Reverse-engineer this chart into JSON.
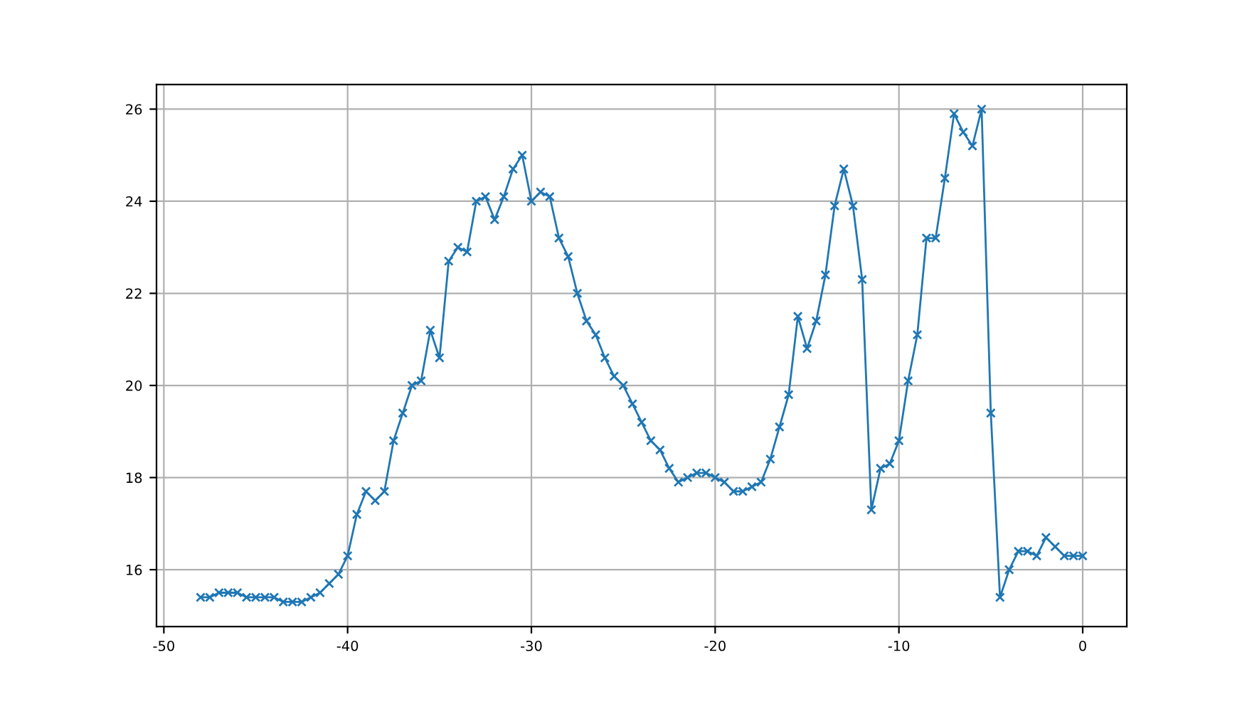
{
  "chart_data": {
    "type": "line",
    "x": [
      -48,
      -47.5,
      -47,
      -46.5,
      -46,
      -45.5,
      -45,
      -44.5,
      -44,
      -43.5,
      -43,
      -42.5,
      -42,
      -41.5,
      -41,
      -40.5,
      -40,
      -39.5,
      -39,
      -38.5,
      -38,
      -37.5,
      -37,
      -36.5,
      -36,
      -35.5,
      -35,
      -34.5,
      -34,
      -33.5,
      -33,
      -32.5,
      -32,
      -31.5,
      -31,
      -30.5,
      -30,
      -29.5,
      -29,
      -28.5,
      -28,
      -27.5,
      -27,
      -26.5,
      -26,
      -25.5,
      -25,
      -24.5,
      -24,
      -23.5,
      -23,
      -22.5,
      -22,
      -21.5,
      -21,
      -20.5,
      -20,
      -19.5,
      -19,
      -18.5,
      -18,
      -17.5,
      -17,
      -16.5,
      -16,
      -15.5,
      -15,
      -14.5,
      -14,
      -13.5,
      -13,
      -12.5,
      -12,
      -11.5,
      -11,
      -10.5,
      -10,
      -9.5,
      -9,
      -8.5,
      -8,
      -7.5,
      -7,
      -6.5,
      -6,
      -5.5,
      -5,
      -4.5,
      -4,
      -3.5,
      -3,
      -2.5,
      -2,
      -1.5,
      -1,
      -0.5,
      0
    ],
    "series": [
      {
        "color": "#1f77b4",
        "values": [
          15.4,
          15.4,
          15.5,
          15.5,
          15.5,
          15.4,
          15.4,
          15.4,
          15.4,
          15.3,
          15.3,
          15.3,
          15.4,
          15.5,
          15.7,
          15.9,
          16.3,
          17.2,
          17.7,
          17.5,
          17.7,
          18.8,
          19.4,
          20.0,
          20.1,
          21.2,
          20.6,
          22.7,
          23.0,
          22.9,
          24.0,
          24.1,
          23.6,
          24.1,
          24.7,
          25.0,
          24.0,
          24.2,
          24.1,
          23.2,
          22.8,
          22.0,
          21.4,
          21.1,
          20.6,
          20.2,
          20.0,
          19.6,
          19.2,
          18.8,
          18.6,
          18.2,
          17.9,
          18.0,
          18.1,
          18.1,
          18.0,
          17.9,
          17.7,
          17.7,
          17.8,
          17.9,
          18.4,
          19.1,
          19.8,
          21.5,
          20.8,
          21.4,
          22.4,
          23.9,
          24.7,
          23.9,
          22.3,
          17.3,
          18.2,
          18.3,
          18.8,
          20.1,
          21.1,
          23.2,
          23.2,
          24.5,
          25.9,
          25.5,
          25.2,
          26.0,
          19.4,
          15.4,
          16.0,
          16.4,
          16.4,
          16.3,
          16.7,
          16.5,
          16.3,
          16.3,
          16.3
        ]
      }
    ],
    "xlim": [
      -50.4,
      2.4
    ],
    "ylim": [
      14.765,
      26.535
    ],
    "xticks": [
      -50,
      -40,
      -30,
      -20,
      -10,
      0
    ],
    "yticks": [
      16,
      18,
      20,
      22,
      24,
      26
    ],
    "grid": true,
    "marker": "cross",
    "line_style": "solid"
  }
}
